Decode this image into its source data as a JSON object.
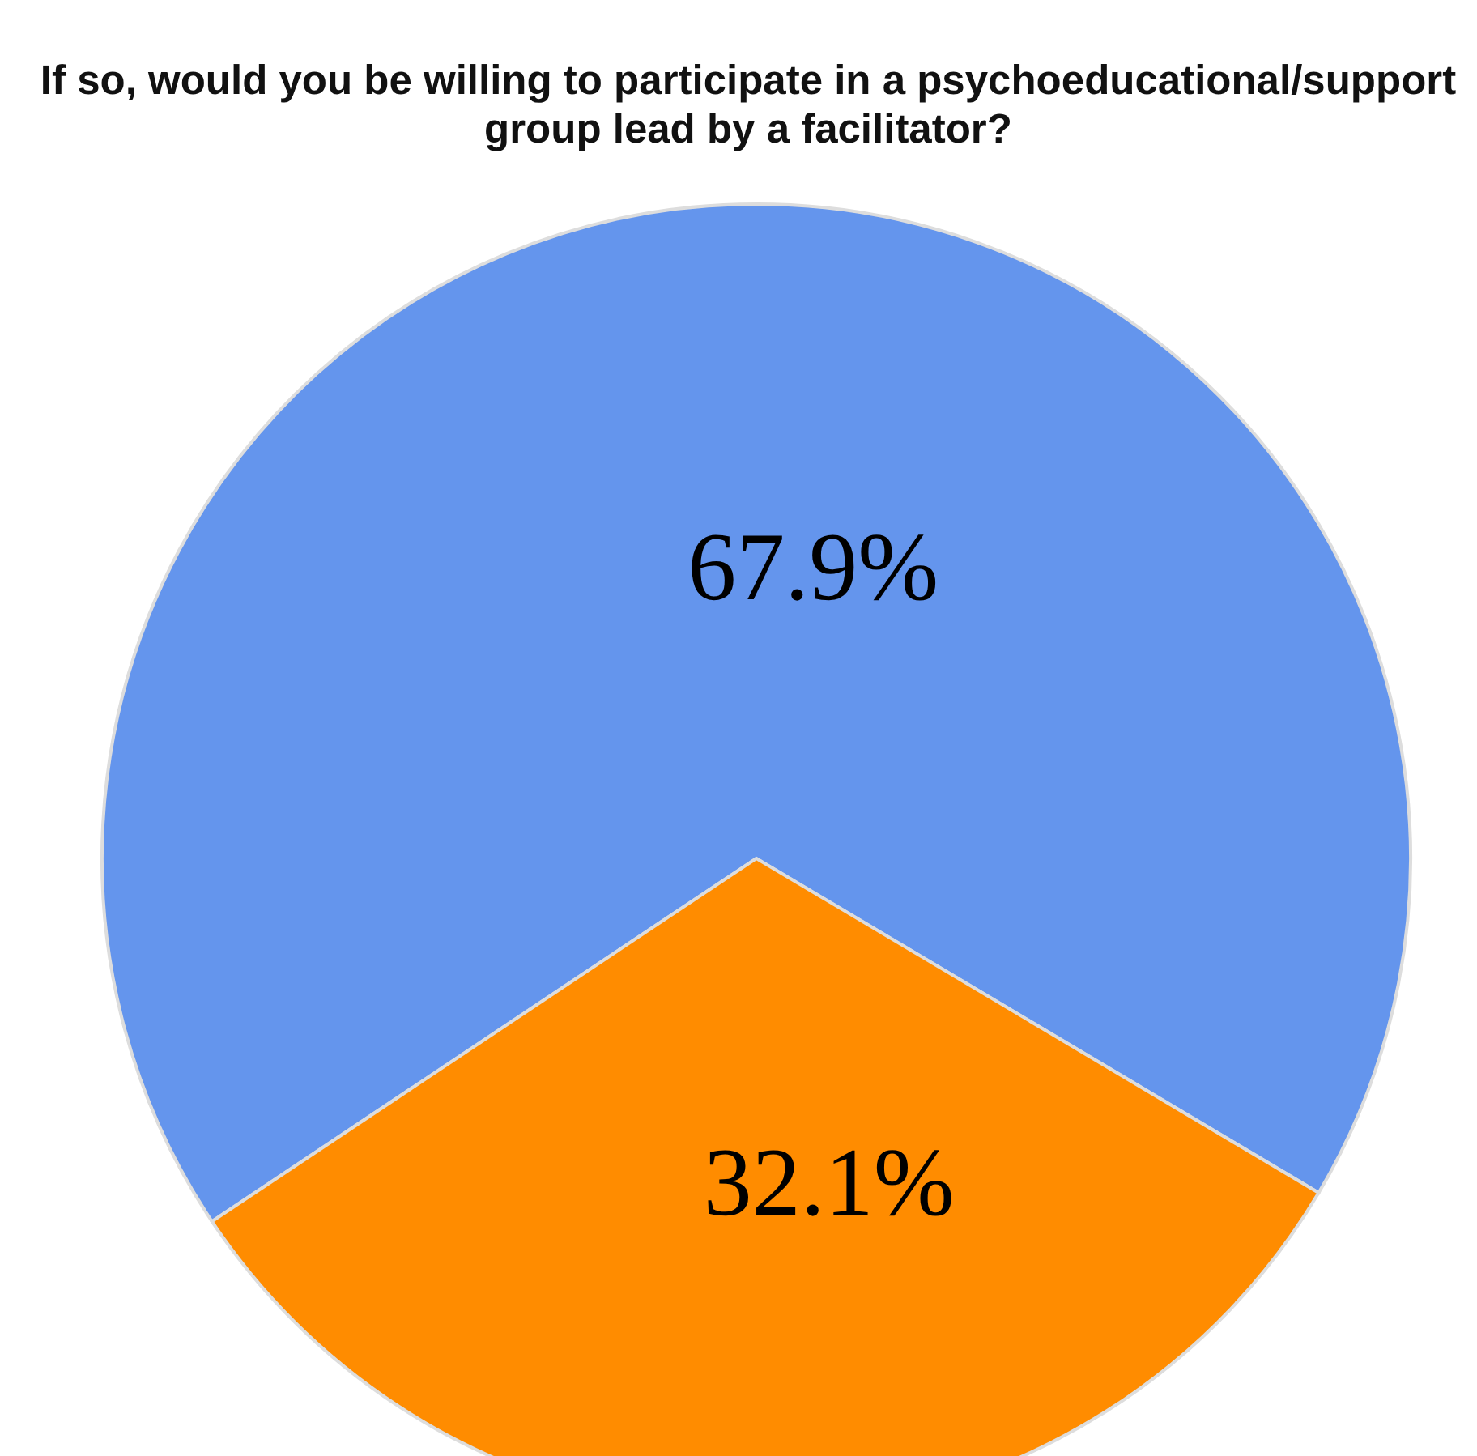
{
  "chart_data": {
    "type": "pie",
    "title": "If so, would you be willing to participate in a psychoeducational/support group lead by a facilitator?",
    "categories": [
      null,
      null
    ],
    "values": [
      67.9,
      32.1
    ],
    "colors": [
      "#6495ed",
      "#ff8c00"
    ],
    "value_labels": [
      "67.9%",
      "32.1%"
    ]
  }
}
